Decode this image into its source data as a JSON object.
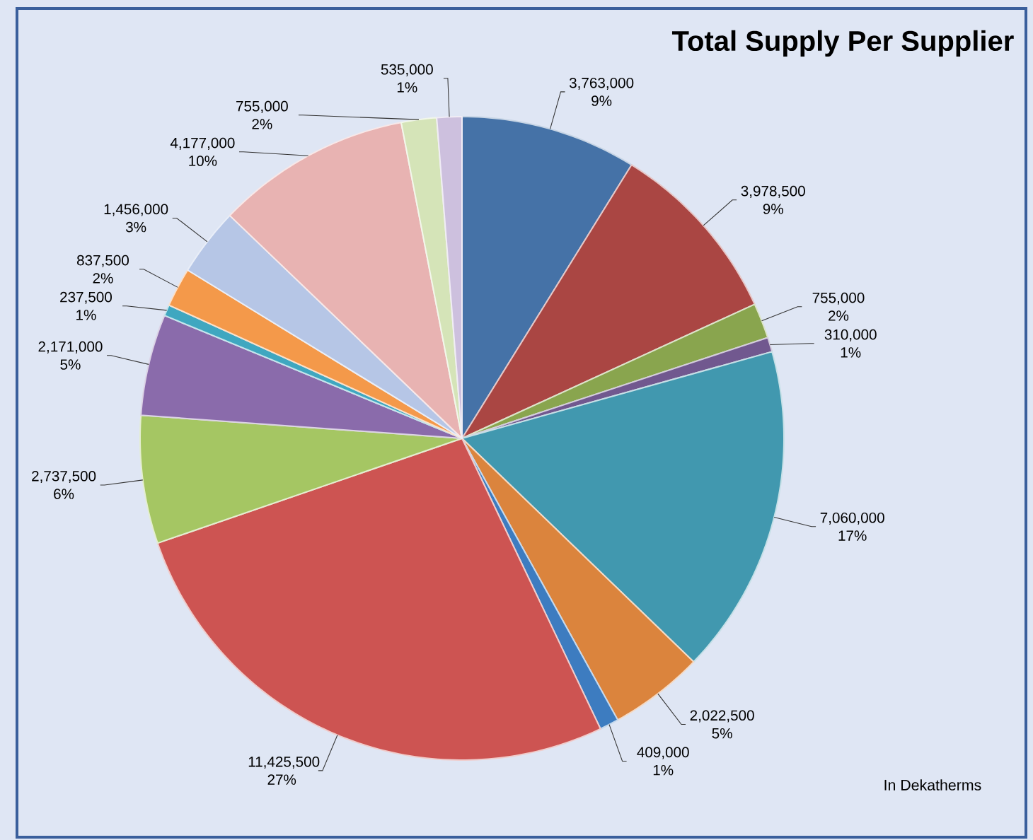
{
  "chart_data": {
    "type": "pie",
    "title": "Total Supply Per Supplier",
    "annotations": [
      "In Dekatherms"
    ],
    "categories": [
      null,
      null,
      null,
      null,
      null,
      null,
      null,
      null,
      null,
      null,
      null,
      null,
      null,
      null,
      null,
      null
    ],
    "values": [
      3763000,
      3978500,
      755000,
      310000,
      7060000,
      2022500,
      409000,
      11425500,
      2737500,
      2171000,
      237500,
      837500,
      1456000,
      4177000,
      755000,
      535000
    ],
    "value_labels": [
      "3,763,000 9%",
      "3,978,500 9%",
      "755,000 2%",
      "310,000 1%",
      "7,060,000 17%",
      "2,022,500 5%",
      "409,000 1%",
      "11,425,500 27%",
      "2,737,500 6%",
      "2,171,000 5%",
      "237,500 1%",
      "837,500 2%",
      "1,456,000 3%",
      "4,177,000 10%",
      "755,000 2%",
      "535,000 1%"
    ],
    "colors": [
      "#4572a7",
      "#aa4643",
      "#89a54e",
      "#71588f",
      "#4198af",
      "#db843d",
      "#3d7cc0",
      "#cd5452",
      "#a5c663",
      "#8a6bab",
      "#3fa7c0",
      "#f4994a",
      "#b6c6e6",
      "#e8b3b2",
      "#d5e4b8",
      "#cdc0de"
    ]
  }
}
